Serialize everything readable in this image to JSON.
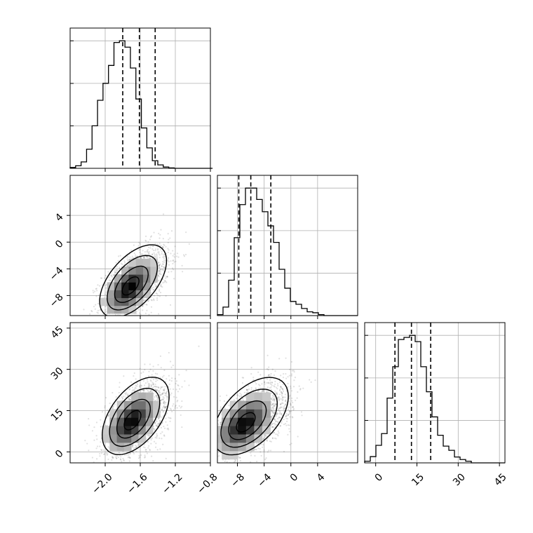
{
  "chart_data": {
    "type": "corner",
    "parameters": [
      {
        "name": "",
        "range": [
          -2.4,
          -0.8
        ],
        "ticks": [
          -2.0,
          -1.6,
          -1.2,
          -0.8
        ],
        "tick_labels": [
          "−2.0",
          "−1.6",
          "−1.2",
          "−0.8"
        ],
        "quantiles": [
          -1.8,
          -1.61,
          -1.43
        ]
      },
      {
        "name": "",
        "range": [
          -11,
          10
        ],
        "ticks": [
          -8,
          -4,
          0,
          4
        ],
        "tick_labels": [
          "−8",
          "−4",
          "0",
          "4"
        ],
        "quantiles": [
          -7.8,
          -6.0,
          -3.0
        ]
      },
      {
        "name": "",
        "range": [
          -4,
          47
        ],
        "ticks": [
          0,
          15,
          30,
          45
        ],
        "tick_labels": [
          "0",
          "15",
          "30",
          "45"
        ],
        "quantiles": [
          7,
          13,
          20
        ]
      }
    ],
    "histograms": [
      {
        "param": 0,
        "bin_start": -2.4,
        "bin_width": 0.0625,
        "counts": [
          2,
          6,
          15,
          45,
          100,
          160,
          200,
          242,
          296,
          300,
          285,
          236,
          163,
          95,
          48,
          18,
          8,
          3,
          1,
          0,
          0,
          0,
          0,
          0,
          0,
          0
        ]
      },
      {
        "param": 1,
        "bin_start": -11,
        "bin_width": 0.84,
        "counts": [
          2,
          18,
          75,
          165,
          235,
          270,
          270,
          246,
          220,
          190,
          155,
          98,
          58,
          30,
          24,
          15,
          8,
          6,
          2,
          0,
          0,
          0,
          0,
          0,
          0
        ]
      },
      {
        "param": 2,
        "bin_start": -4,
        "bin_width": 2.04,
        "counts": [
          4,
          15,
          42,
          70,
          155,
          230,
          295,
          300,
          305,
          290,
          230,
          170,
          110,
          66,
          40,
          30,
          14,
          8,
          4,
          0,
          0,
          0,
          0,
          0,
          0
        ]
      }
    ],
    "pairs": [
      {
        "x_param": 0,
        "y_param": 1,
        "mean": [
          -1.65,
          -6.0
        ],
        "std": [
          0.19,
          2.7
        ],
        "corr": 0.55,
        "mode": [
          -1.72,
          -6.8
        ]
      },
      {
        "x_param": 0,
        "y_param": 2,
        "mean": [
          -1.62,
          12.5
        ],
        "std": [
          0.19,
          7.0
        ],
        "corr": 0.5,
        "mode": [
          -1.7,
          11.0
        ]
      },
      {
        "x_param": 1,
        "y_param": 2,
        "mean": [
          -5.5,
          12.5
        ],
        "std": [
          2.8,
          7.0
        ],
        "corr": 0.5,
        "mode": [
          -7.0,
          10.0
        ]
      }
    ],
    "contour_levels_sigma": [
      0.5,
      1.0,
      1.5,
      2.0
    ],
    "grid": true,
    "legend": "none"
  }
}
